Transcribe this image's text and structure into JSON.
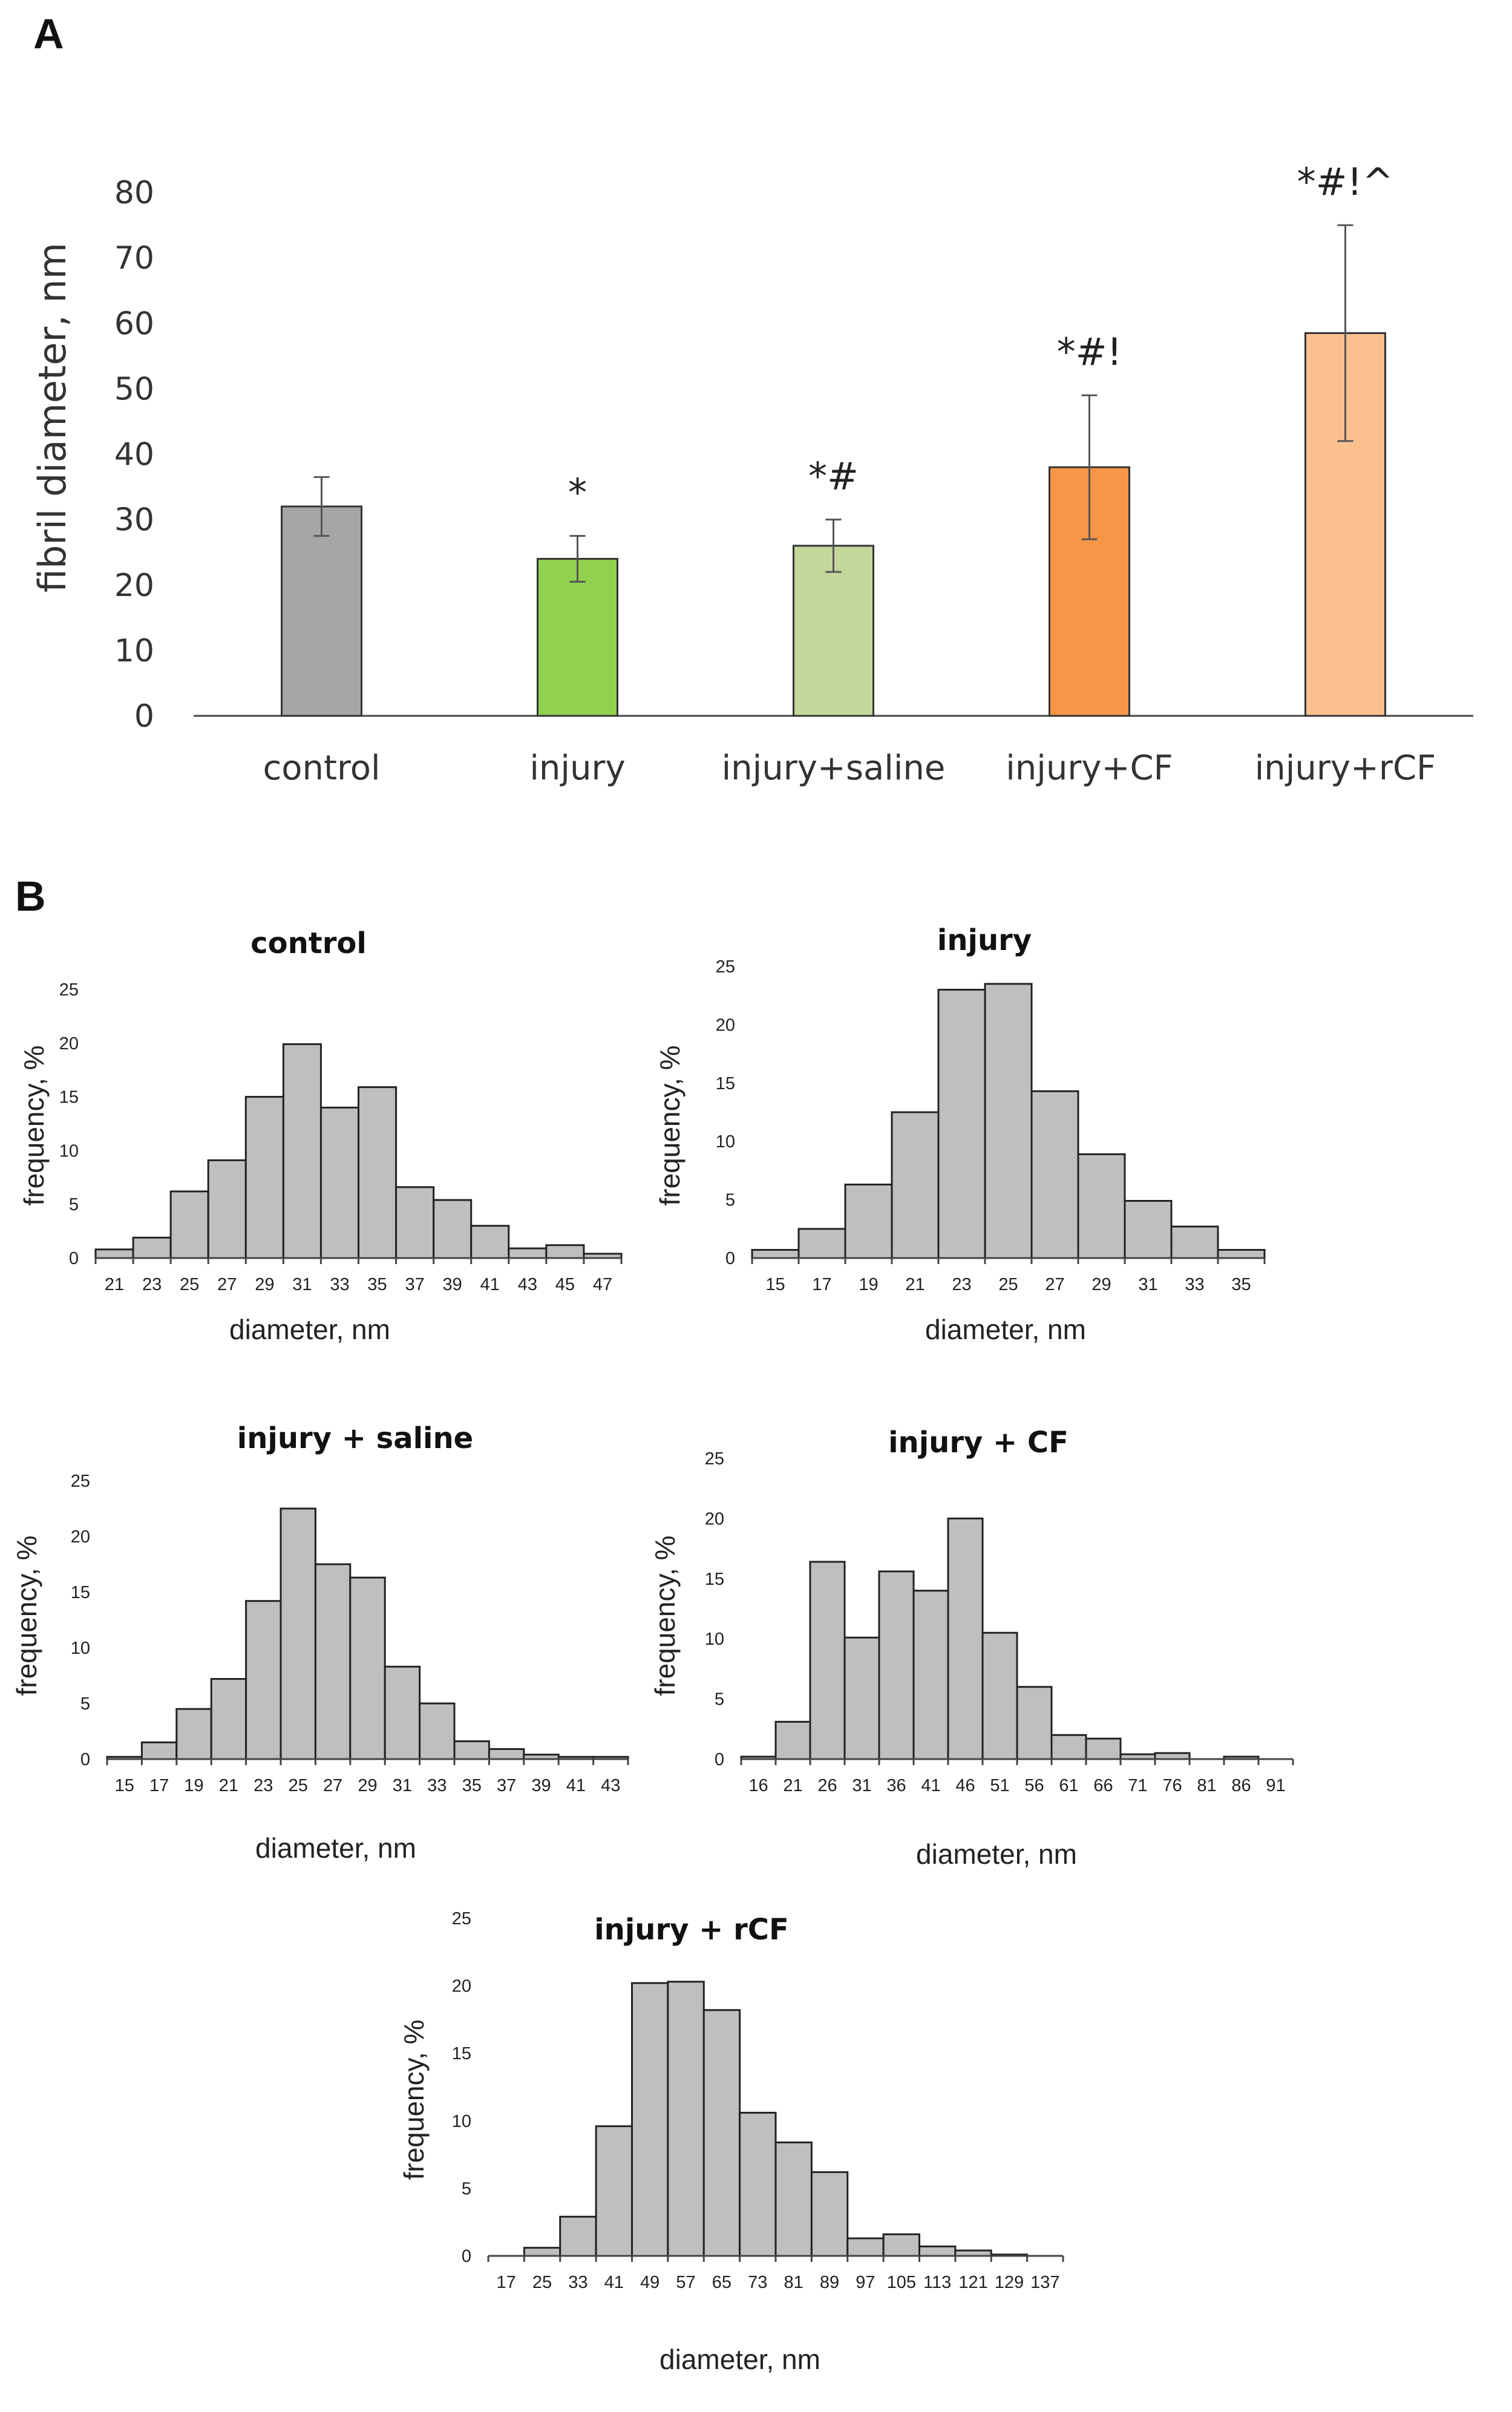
{
  "panel_a_letter": "A",
  "panel_b_letter": "B",
  "chart_data": [
    {
      "id": "A",
      "type": "bar",
      "ylabel": "fibril diameter, nm",
      "ylim": [
        0,
        80
      ],
      "yticks": [
        "0",
        "10",
        "20",
        "30",
        "40",
        "50",
        "60",
        "70",
        "80"
      ],
      "categories": [
        "control",
        "injury",
        "injury+saline",
        "injury+CF",
        "injury+rCF"
      ],
      "values": [
        32,
        24,
        26,
        38,
        58.5
      ],
      "errors": [
        4.5,
        3.5,
        4,
        11,
        16.5
      ],
      "colors": [
        "#a6a6a6",
        "#92d050",
        "#c4d79b",
        "#f79646",
        "#fac090"
      ],
      "annotations": [
        "",
        "*",
        "*#",
        "*#!",
        "*#!^"
      ]
    },
    {
      "id": "B-control",
      "type": "bar",
      "title": "control",
      "xlabel": "diameter, nm",
      "ylabel": "frequency, %",
      "ylim": [
        0,
        25
      ],
      "yticks": [
        "0",
        "5",
        "10",
        "15",
        "20",
        "25"
      ],
      "xticks": [
        "21",
        "23",
        "25",
        "27",
        "29",
        "31",
        "33",
        "35",
        "37",
        "39",
        "41",
        "43",
        "45",
        "47"
      ],
      "values": [
        0.8,
        1.9,
        6.2,
        9.1,
        15,
        19.9,
        14,
        15.9,
        6.6,
        5.4,
        3,
        0.9,
        1.2,
        0.4
      ]
    },
    {
      "id": "B-injury",
      "type": "bar",
      "title": "injury",
      "xlabel": "diameter, nm",
      "ylabel": "frequency, %",
      "ylim": [
        0,
        25
      ],
      "yticks": [
        "0",
        "5",
        "10",
        "15",
        "20",
        "25"
      ],
      "xticks": [
        "15",
        "17",
        "19",
        "21",
        "23",
        "25",
        "27",
        "29",
        "31",
        "33",
        "35"
      ],
      "values": [
        0.7,
        2.5,
        6.3,
        12.5,
        23,
        23.5,
        14.3,
        8.9,
        4.9,
        2.7,
        0.7
      ]
    },
    {
      "id": "B-injury-saline",
      "type": "bar",
      "title": "injury + saline",
      "xlabel": "diameter, nm",
      "ylabel": "frequency, %",
      "ylim": [
        0,
        25
      ],
      "yticks": [
        "0",
        "5",
        "10",
        "15",
        "20",
        "25"
      ],
      "xticks": [
        "15",
        "17",
        "19",
        "21",
        "23",
        "25",
        "27",
        "29",
        "31",
        "33",
        "35",
        "37",
        "39",
        "41",
        "43"
      ],
      "values": [
        0.2,
        1.5,
        4.5,
        7.2,
        14.2,
        22.5,
        17.5,
        16.3,
        8.3,
        5,
        1.6,
        0.9,
        0.4,
        0.2,
        0.2
      ]
    },
    {
      "id": "B-injury-CF",
      "type": "bar",
      "title": "injury + CF",
      "xlabel": "diameter, nm",
      "ylabel": "frequency, %",
      "ylim": [
        0,
        25
      ],
      "yticks": [
        "0",
        "5",
        "10",
        "15",
        "20",
        "25"
      ],
      "xticks": [
        "16",
        "21",
        "26",
        "31",
        "36",
        "41",
        "46",
        "51",
        "56",
        "61",
        "66",
        "71",
        "76",
        "81",
        "86",
        "91"
      ],
      "values": [
        0.2,
        3.1,
        16.4,
        10.1,
        15.6,
        14,
        20,
        10.5,
        6,
        2,
        1.7,
        0.4,
        0.5,
        0,
        0.2,
        0
      ]
    },
    {
      "id": "B-injury-rCF",
      "type": "bar",
      "title": "injury + rCF",
      "xlabel": "diameter, nm",
      "ylabel": "frequency, %",
      "ylim": [
        0,
        25
      ],
      "yticks": [
        "0",
        "5",
        "10",
        "15",
        "20",
        "25"
      ],
      "xticks": [
        "17",
        "25",
        "33",
        "41",
        "49",
        "57",
        "65",
        "73",
        "81",
        "89",
        "97",
        "105",
        "113",
        "121",
        "129",
        "137"
      ],
      "values": [
        0,
        0.6,
        2.9,
        9.6,
        20.2,
        20.3,
        18.2,
        10.6,
        8.4,
        6.2,
        1.3,
        1.6,
        0.7,
        0.4,
        0.1,
        0
      ]
    }
  ]
}
